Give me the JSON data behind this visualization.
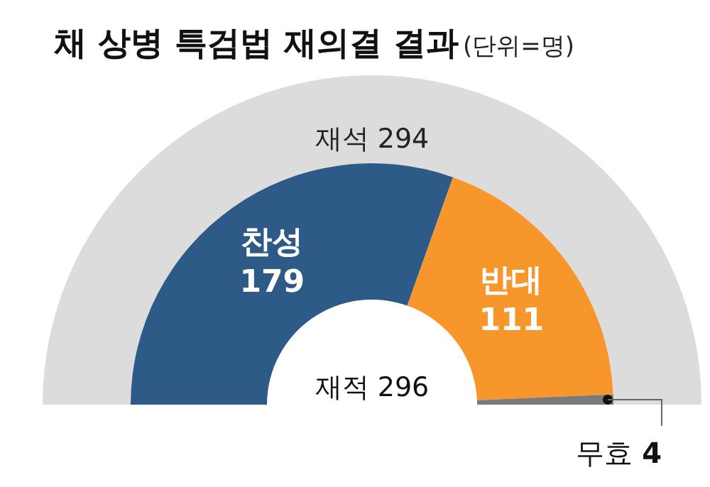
{
  "chart_data": {
    "type": "donut",
    "title": "채 상병 특검법 재의결 결과",
    "subtitle": "(단위=명)",
    "categories": [
      "찬성",
      "반대",
      "무효"
    ],
    "values": [
      179,
      111,
      4
    ],
    "colors": [
      "#2d5a87",
      "#f7962a",
      "#7a7a7a"
    ],
    "value_labels": [
      "179",
      "111",
      "4"
    ],
    "annotations": [
      "재석 294",
      "재적 296"
    ]
  }
}
